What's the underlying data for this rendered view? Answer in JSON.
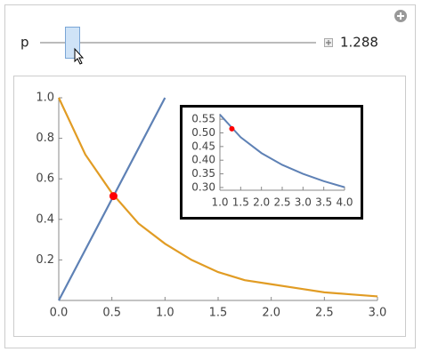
{
  "control": {
    "label": "p",
    "value": 1.288
  },
  "chart_data": [
    {
      "type": "line",
      "xlim": [
        0,
        3
      ],
      "ylim": [
        0,
        1
      ],
      "xticks": [
        {
          "value": 0,
          "label": "0.0"
        },
        0.5,
        {
          "value": 1,
          "label": "1.0"
        },
        1.5,
        {
          "value": 2,
          "label": "2.0"
        },
        2.5,
        {
          "value": 3,
          "label": "3.0"
        }
      ],
      "yticks": [
        0.2,
        0.4,
        0.6,
        0.8,
        {
          "value": 1,
          "label": "1.0"
        }
      ],
      "series": [
        {
          "color": "#e19c24",
          "mode": "line",
          "x": [
            0,
            0.25,
            0.5,
            0.75,
            1,
            1.25,
            1.5,
            1.75,
            2,
            2.25,
            2.5,
            2.75,
            3
          ],
          "values": [
            1,
            0.72,
            0.53,
            0.38,
            0.28,
            0.2,
            0.14,
            0.1,
            0.08,
            0.06,
            0.04,
            0.03,
            0.02
          ]
        },
        {
          "color": "#5e81b5",
          "mode": "line",
          "x": [
            0,
            1
          ],
          "values": [
            0,
            1
          ]
        },
        {
          "color": "#ff0000",
          "mode": "point",
          "x": [
            0.515
          ],
          "values": [
            0.515
          ]
        }
      ]
    },
    {
      "type": "line",
      "xlim": [
        1,
        4
      ],
      "ylim": [
        0.29,
        0.57
      ],
      "xticks": [
        {
          "value": 1,
          "label": "1.0"
        },
        1.5,
        {
          "value": 2,
          "label": "2.0"
        },
        2.5,
        {
          "value": 3,
          "label": "3.0"
        },
        3.5,
        {
          "value": 4,
          "label": "4.0"
        }
      ],
      "yticks": [
        {
          "value": 0.3,
          "label": "0.30"
        },
        0.35,
        {
          "value": 0.4,
          "label": "0.40"
        },
        0.45,
        {
          "value": 0.5,
          "label": "0.50"
        },
        0.55
      ],
      "series": [
        {
          "color": "#5e81b5",
          "mode": "line",
          "x": [
            1,
            1.5,
            2,
            2.5,
            3,
            3.5,
            4
          ],
          "values": [
            0.567,
            0.484,
            0.426,
            0.383,
            0.35,
            0.323,
            0.301
          ]
        },
        {
          "color": "#ff0000",
          "mode": "point",
          "x": [
            1.288
          ],
          "values": [
            0.515
          ]
        }
      ]
    }
  ]
}
